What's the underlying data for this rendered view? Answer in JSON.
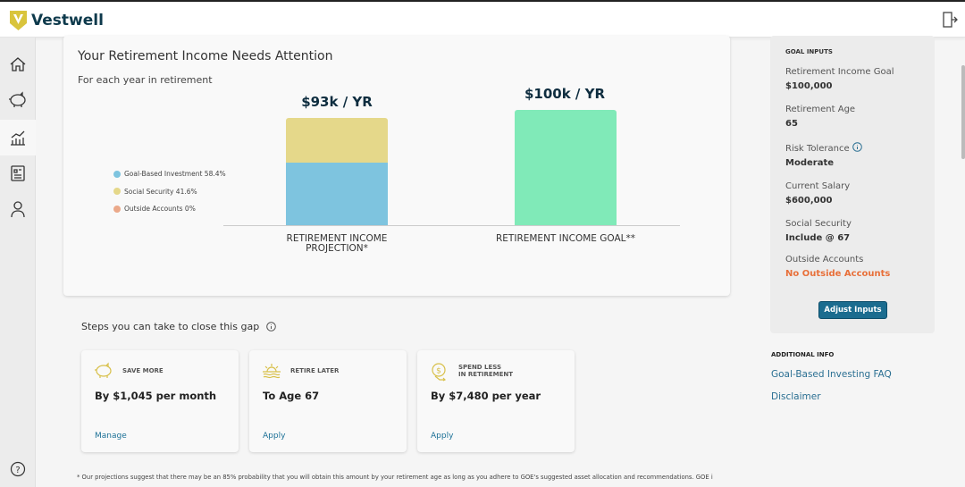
{
  "header": {
    "brand": "Vestwell",
    "logo_letter": "V"
  },
  "sidebar": {
    "items": [
      {
        "icon": "home-icon"
      },
      {
        "icon": "piggy-bank-icon"
      },
      {
        "icon": "chart-icon",
        "active": true
      },
      {
        "icon": "document-icon"
      },
      {
        "icon": "user-icon"
      }
    ],
    "help_icon": "help-icon"
  },
  "main": {
    "title": "Your Retirement Income Needs Attention",
    "subtitle": "For each year in retirement",
    "legend": [
      {
        "label": "Goal-Based Investment 58.4%",
        "color": "#7ec4df"
      },
      {
        "label": "Social Security 41.6%",
        "color": "#e5d88a"
      },
      {
        "label": "Outside Accounts 0%",
        "color": "#eba98a"
      }
    ]
  },
  "chart_data": {
    "type": "bar",
    "categories": [
      "RETIREMENT INCOME PROJECTION*",
      "RETIREMENT INCOME GOAL**"
    ],
    "data_labels": [
      "$93k / YR",
      "$100k / YR"
    ],
    "totals": [
      93,
      100
    ],
    "series": [
      {
        "name": "Goal-Based Investment",
        "share": 58.4,
        "color": "#7ec4df",
        "values": [
          54.3,
          0
        ]
      },
      {
        "name": "Social Security",
        "share": 41.6,
        "color": "#e5d88a",
        "values": [
          38.7,
          0
        ]
      },
      {
        "name": "Outside Accounts",
        "share": 0,
        "color": "#eba98a",
        "values": [
          0,
          0
        ]
      },
      {
        "name": "Goal",
        "color": "#80eab8",
        "values": [
          0,
          100
        ]
      }
    ],
    "ylim": [
      0,
      100
    ],
    "grid": false,
    "legend_position": "left"
  },
  "steps": {
    "title": "Steps you can take to close this gap",
    "cards": [
      {
        "icon": "piggy-bank-icon",
        "heading": "SAVE MORE",
        "value": "By $1,045 per month",
        "action": "Manage"
      },
      {
        "icon": "sunset-icon",
        "heading": "RETIRE LATER",
        "value": "To Age 67",
        "action": "Apply"
      },
      {
        "icon": "dollar-down-icon",
        "heading": "SPEND LESS IN RETIREMENT",
        "heading_lines": [
          "SPEND LESS",
          "IN RETIREMENT"
        ],
        "value": "By $7,480 per year",
        "action": "Apply"
      }
    ]
  },
  "footnote": "* Our projections suggest that there may be an 85% probability that you will obtain this amount by your retirement age as long as you adhere to GOE's suggested asset allocation and recommendations. GOE is",
  "goal_inputs": {
    "heading": "GOAL INPUTS",
    "rows": [
      {
        "label": "Retirement Income Goal",
        "value": "$100,000"
      },
      {
        "label": "Retirement Age",
        "value": "65"
      },
      {
        "label": "Risk Tolerance",
        "value": "Moderate"
      },
      {
        "label": "Current Salary",
        "value": "$600,000"
      },
      {
        "label": "Social Security",
        "value": "Include @ 67"
      },
      {
        "label": "Outside Accounts",
        "value": "No Outside Accounts"
      }
    ],
    "button": "Adjust Inputs",
    "warning_color": "#e8703a"
  },
  "additional": {
    "heading": "ADDITIONAL INFO",
    "links": [
      "Goal-Based Investing FAQ",
      "Disclaimer"
    ]
  }
}
